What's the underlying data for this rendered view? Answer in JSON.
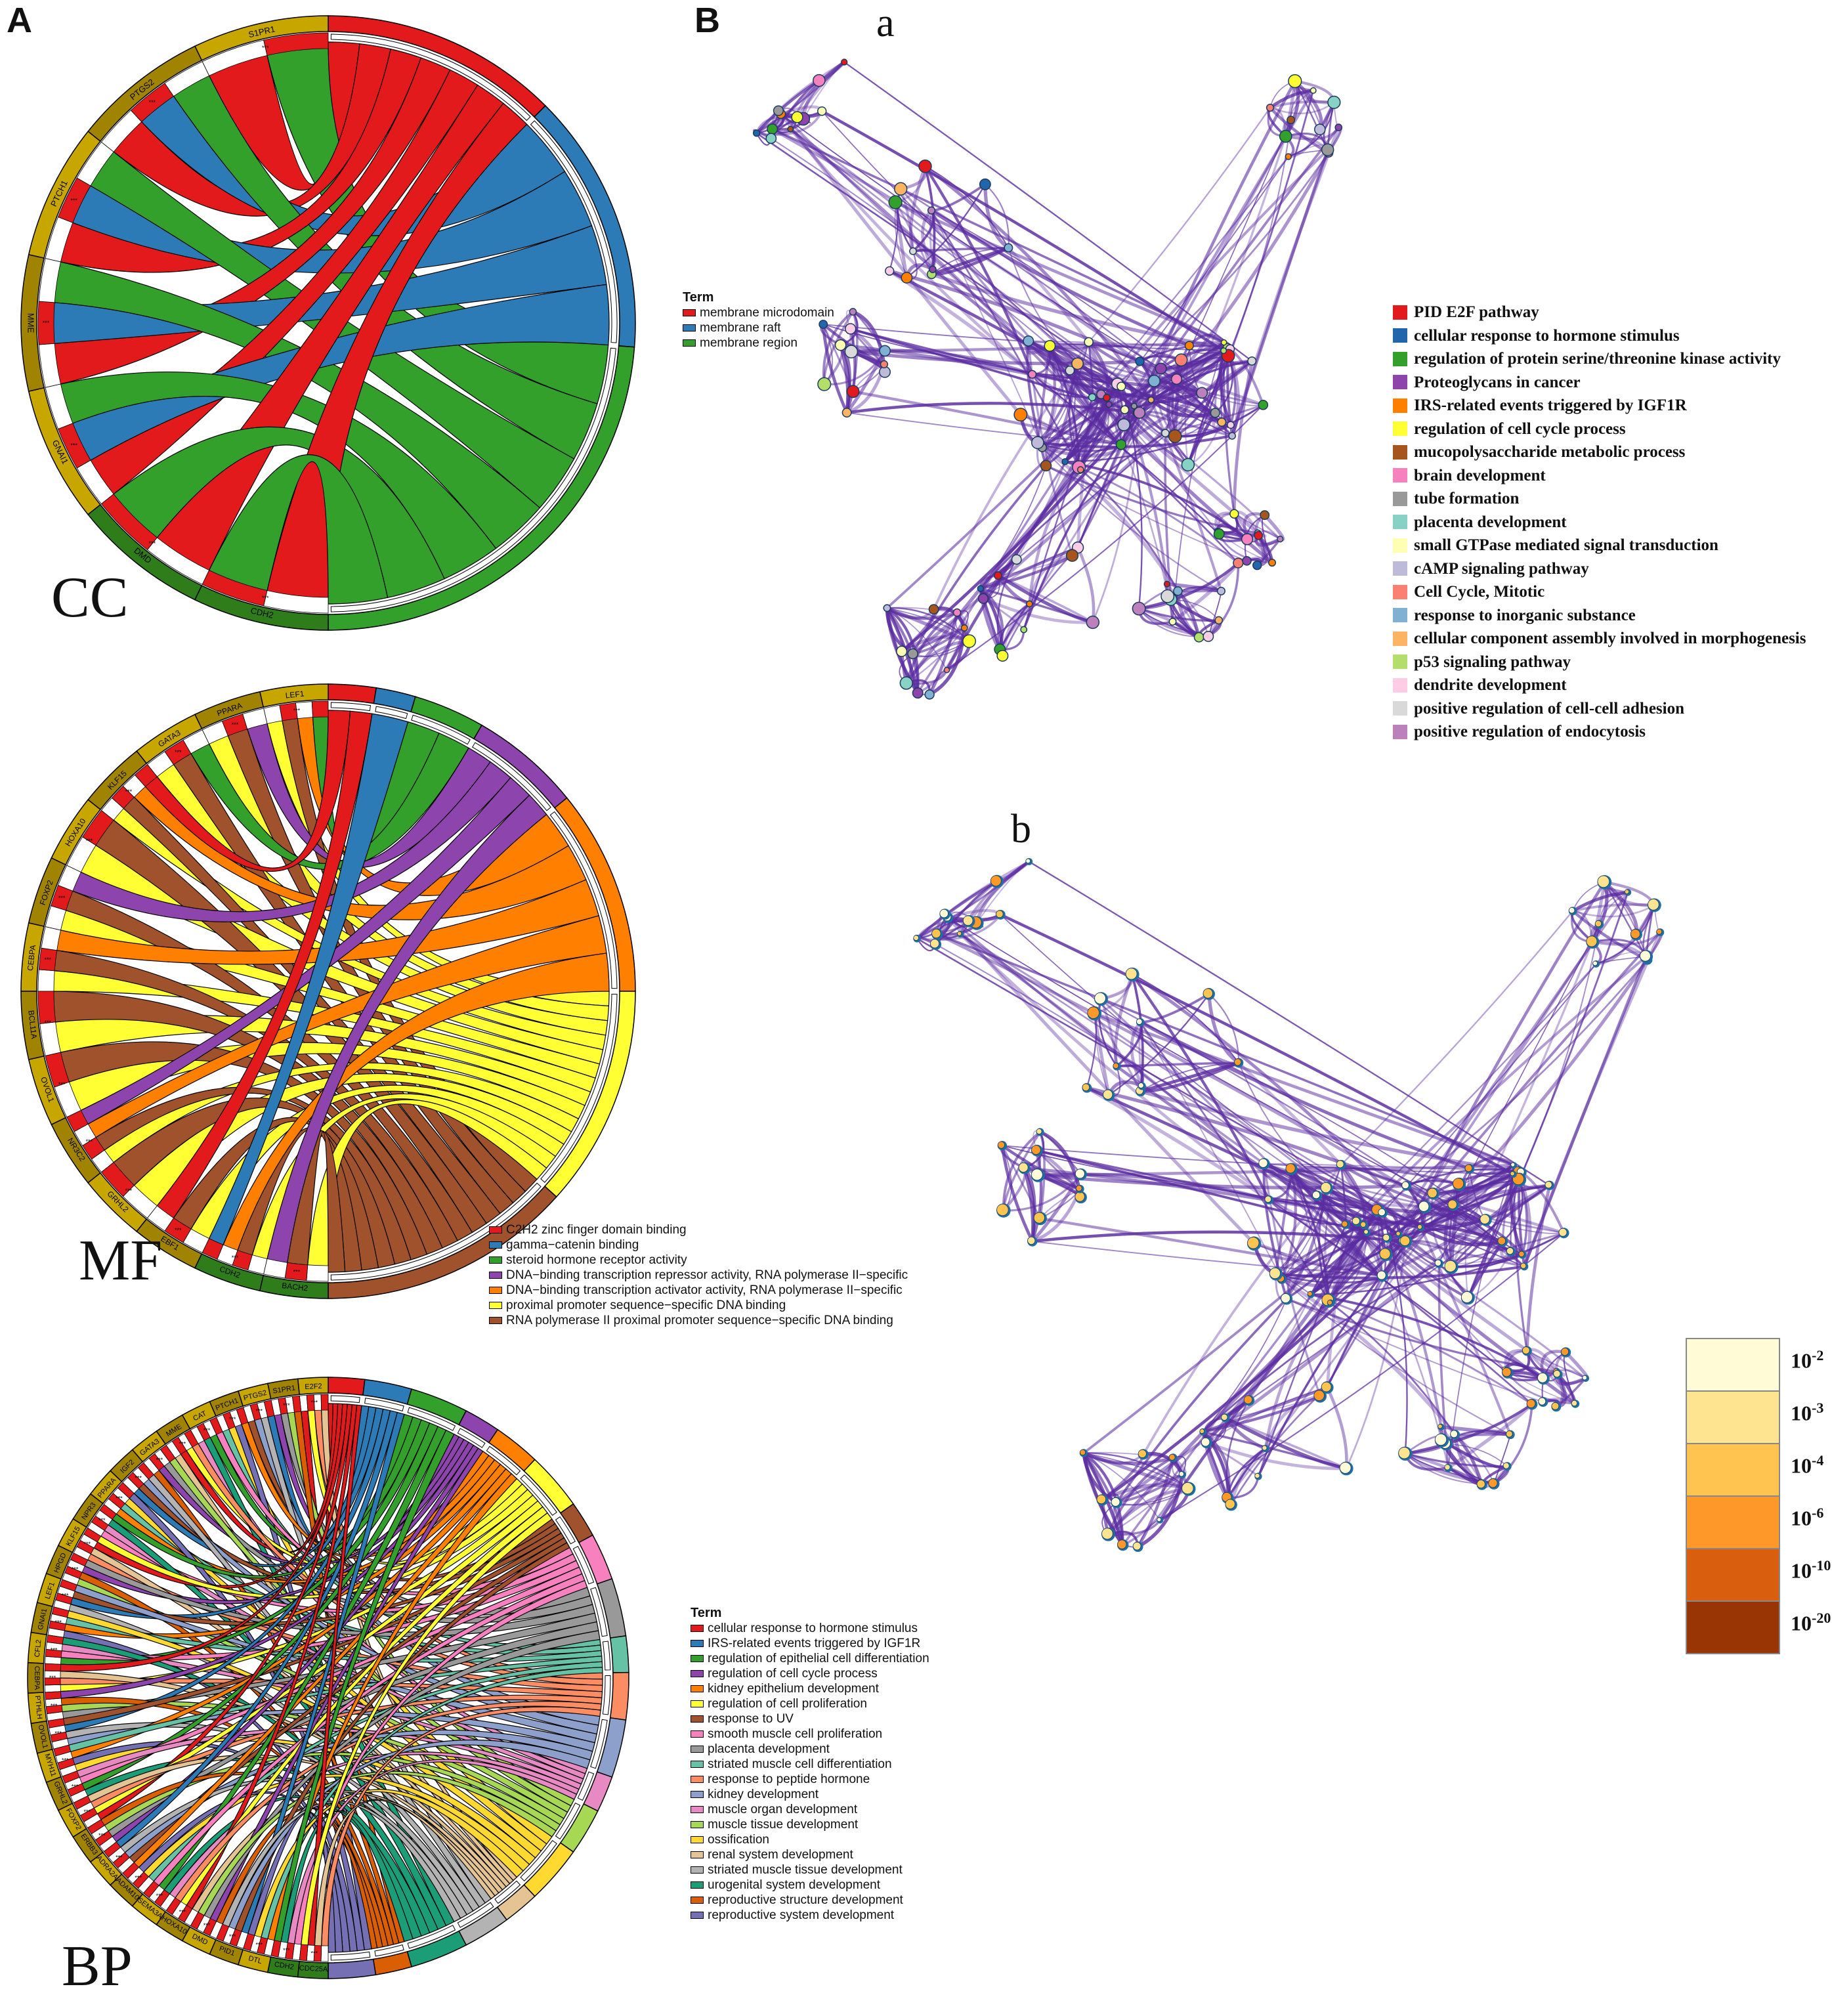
{
  "panels": {
    "a_letter": "A",
    "b_letter": "B",
    "net_a_label": "a",
    "net_b_label": "b"
  },
  "cc": {
    "label": "CC",
    "genes": [
      "S1PR1",
      "PTGS2",
      "PTCH1",
      "MME",
      "GNAI1",
      "DMD",
      "CDH2"
    ],
    "legend_title": "Term",
    "terms": [
      {
        "name": "membrane microdomain",
        "color": "#e31a1c"
      },
      {
        "name": "membrane raft",
        "color": "#2c7bb6"
      },
      {
        "name": "membrane region",
        "color": "#33a02c"
      }
    ],
    "stars": "***"
  },
  "mf": {
    "label": "MF",
    "genes": [
      "LEF1",
      "PPARA",
      "GATA3",
      "KLF15",
      "HOXA10",
      "FOXP2",
      "CEBPA",
      "BCL11A",
      "OVOL1",
      "NR3C2",
      "GRHL2",
      "EBF1",
      "CDH2",
      "BACH2"
    ],
    "terms": [
      {
        "name": "C2H2 zinc finger domain binding",
        "color": "#e31a1c"
      },
      {
        "name": "gamma−catenin binding",
        "color": "#2c7bb6"
      },
      {
        "name": "steroid hormone receptor activity",
        "color": "#33a02c"
      },
      {
        "name": "DNA−binding transcription repressor activity, RNA polymerase II−specific",
        "color": "#8e44ad"
      },
      {
        "name": "DNA−binding transcription activator activity, RNA polymerase II−specific",
        "color": "#ff7f00"
      },
      {
        "name": "proximal promoter sequence−specific DNA binding",
        "color": "#ffff33"
      },
      {
        "name": "RNA polymerase II proximal promoter sequence−specific DNA binding",
        "color": "#a0522d"
      }
    ],
    "stars": "***"
  },
  "bp": {
    "label": "BP",
    "genes": [
      "E2F2",
      "S1PR1",
      "PTGS2",
      "PTCH1",
      "CAT",
      "MME",
      "GATA3",
      "IGF2",
      "PPARA",
      "NPR3",
      "KLF15",
      "HPGD",
      "LEF1",
      "GNAI1",
      "CFL2",
      "CEBPA",
      "PTHLH",
      "OVOL1",
      "MYH11",
      "GRHL2",
      "FOXP2",
      "ERBB3",
      "ADRA2A",
      "ADAM10",
      "SEMA3A",
      "HOXA10",
      "DMD",
      "PID1",
      "DTL",
      "CDH2",
      "CDC25A"
    ],
    "legend_title": "Term",
    "terms": [
      {
        "name": "cellular response to hormone stimulus",
        "color": "#e31a1c"
      },
      {
        "name": "IRS-related events triggered by IGF1R",
        "color": "#2c7bb6"
      },
      {
        "name": "regulation of epithelial cell differentiation",
        "color": "#33a02c"
      },
      {
        "name": "regulation of cell cycle process",
        "color": "#8e44ad"
      },
      {
        "name": "kidney epithelium development",
        "color": "#ff7f00"
      },
      {
        "name": "regulation of  cell proliferation",
        "color": "#ffff33"
      },
      {
        "name": "response to UV",
        "color": "#a0522d"
      },
      {
        "name": "smooth muscle cell proliferation",
        "color": "#f781bf"
      },
      {
        "name": "placenta development",
        "color": "#999999"
      },
      {
        "name": "striated muscle cell differentiation",
        "color": "#66c2a5"
      },
      {
        "name": "response to peptide hormone",
        "color": "#fc8d62"
      },
      {
        "name": "kidney development",
        "color": "#8da0cb"
      },
      {
        "name": "muscle organ development",
        "color": "#e78ac3"
      },
      {
        "name": "muscle tissue development",
        "color": "#a6d854"
      },
      {
        "name": "ossification",
        "color": "#ffd92f"
      },
      {
        "name": "renal system development",
        "color": "#e5c494"
      },
      {
        "name": "striated muscle tissue development",
        "color": "#b3b3b3"
      },
      {
        "name": "urogenital system development",
        "color": "#1b9e77"
      },
      {
        "name": "reproductive structure development",
        "color": "#d95f02"
      },
      {
        "name": "reproductive system development",
        "color": "#7570b3"
      }
    ],
    "stars": "***"
  },
  "network_legend": [
    {
      "name": "PID E2F pathway",
      "color": "#e31a1c"
    },
    {
      "name": "cellular response to hormone stimulus",
      "color": "#2166ac"
    },
    {
      "name": "regulation of protein serine/threonine kinase activity",
      "color": "#33a02c"
    },
    {
      "name": "Proteoglycans in cancer",
      "color": "#8e44ad"
    },
    {
      "name": "IRS-related events triggered by IGF1R",
      "color": "#ff7f00"
    },
    {
      "name": "regulation of cell cycle process",
      "color": "#ffff33"
    },
    {
      "name": "mucopolysaccharide metabolic process",
      "color": "#a6561c"
    },
    {
      "name": "brain development",
      "color": "#f781bf"
    },
    {
      "name": "tube formation",
      "color": "#999999"
    },
    {
      "name": "placenta development",
      "color": "#88d1c5"
    },
    {
      "name": "small GTPase mediated signal transduction",
      "color": "#ffffb3"
    },
    {
      "name": "cAMP signaling pathway",
      "color": "#bebada"
    },
    {
      "name": "Cell Cycle, Mitotic",
      "color": "#fb8072"
    },
    {
      "name": "response to inorganic substance",
      "color": "#80b1d3"
    },
    {
      "name": "cellular component assembly involved in morphogenesis",
      "color": "#fdb462"
    },
    {
      "name": "p53 signaling pathway",
      "color": "#b3de69"
    },
    {
      "name": "dendrite development",
      "color": "#fccde5"
    },
    {
      "name": "positive regulation of cell-cell adhesion",
      "color": "#d9d9d9"
    },
    {
      "name": "positive regulation of endocytosis",
      "color": "#bc80bd"
    }
  ],
  "pvalue_scale": [
    {
      "base": "10",
      "exp": "-2",
      "color": "#fffbd6"
    },
    {
      "base": "10",
      "exp": "-3",
      "color": "#fee391"
    },
    {
      "base": "10",
      "exp": "-4",
      "color": "#fec44f"
    },
    {
      "base": "10",
      "exp": "-6",
      "color": "#fe9929"
    },
    {
      "base": "10",
      "exp": "-10",
      "color": "#d95f0e"
    },
    {
      "base": "10",
      "exp": "-20",
      "color": "#993404"
    }
  ],
  "colors": {
    "edge": "#5a2ca0",
    "ring_gene": "#c8a600",
    "ring_gene_dark": "#a08300",
    "ring_green": "#2e7d1a",
    "node_outline_b": "#1f6fa3"
  }
}
